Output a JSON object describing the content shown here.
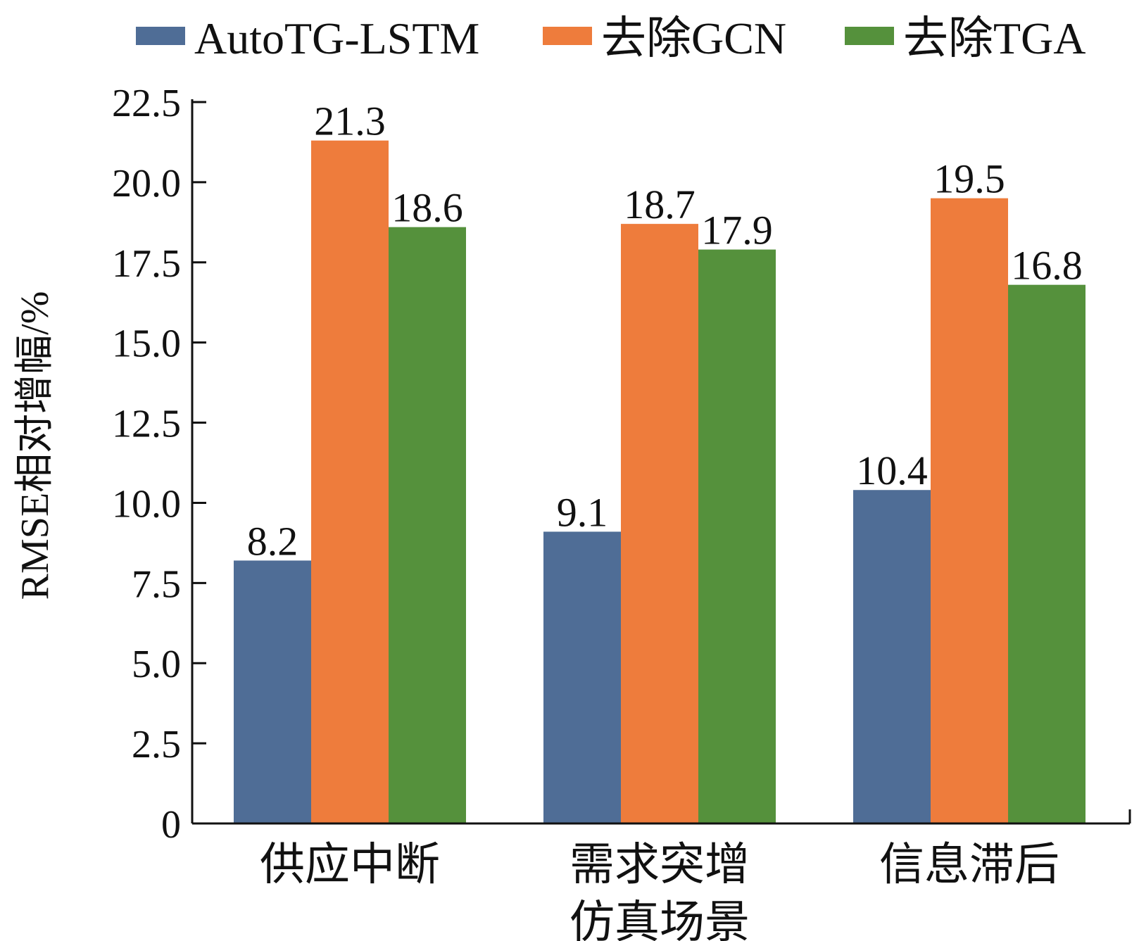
{
  "chart_data": {
    "type": "bar",
    "categories": [
      [
        "供应中断"
      ],
      [
        "需求突增",
        "仿真场景"
      ],
      [
        "信息滞后"
      ]
    ],
    "series": [
      {
        "name": "AutoTG-LSTM",
        "color": "#4f6d96",
        "values": [
          8.2,
          9.1,
          10.4
        ]
      },
      {
        "name": "去除GCN",
        "color": "#ee7c3c",
        "values": [
          21.3,
          18.7,
          19.5
        ]
      },
      {
        "name": "去除TGA",
        "color": "#55913c",
        "values": [
          18.6,
          17.9,
          16.8
        ]
      }
    ],
    "data_labels": [
      [
        "8.2",
        "9.1",
        "10.4"
      ],
      [
        "21.3",
        "18.7",
        "19.5"
      ],
      [
        "18.6",
        "17.9",
        "16.8"
      ]
    ],
    "ylabel": "RMSE相对增幅/%",
    "ylim": [
      0,
      22.5
    ],
    "yticks": [
      0,
      2.5,
      5.0,
      7.5,
      10.0,
      12.5,
      15.0,
      17.5,
      20.0,
      22.5
    ],
    "ytick_labels": [
      "0",
      "2.5",
      "5.0",
      "7.5",
      "10.0",
      "12.5",
      "15.0",
      "17.5",
      "20.0",
      "22.5"
    ],
    "legend_position": "top",
    "grid": false
  }
}
